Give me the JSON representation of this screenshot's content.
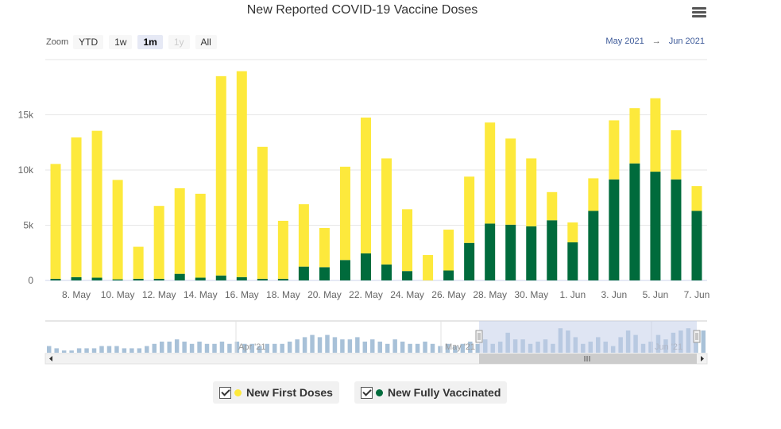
{
  "title": "New Reported COVID-19 Vaccine Doses",
  "zoom": {
    "label": "Zoom",
    "buttons": [
      "YTD",
      "1w",
      "1m",
      "1y",
      "All"
    ],
    "selected": "1m",
    "disabled": [
      "1y"
    ]
  },
  "range": {
    "from": "May 2021",
    "arrow": "→",
    "to": "Jun 2021"
  },
  "colors": {
    "first": "#fde93c",
    "full": "#006b3c",
    "navigator_bar": "#a8c1d8",
    "navigator_mask": "#c5d0ea"
  },
  "navigator": {
    "labels": [
      "Apr '21",
      "May '21",
      "Jun '21"
    ],
    "values": [
      3,
      2,
      1,
      1,
      2,
      2,
      2,
      3,
      3,
      3,
      2,
      2,
      2,
      3,
      4,
      5,
      5,
      6,
      5,
      4,
      5,
      4,
      4,
      5,
      4,
      5,
      4,
      4,
      3,
      4,
      4,
      4,
      5,
      6,
      7,
      8,
      7,
      8,
      7,
      6,
      6,
      7,
      5,
      6,
      5,
      4,
      6,
      5,
      4,
      4,
      5,
      4,
      3,
      4,
      3,
      4,
      5,
      4,
      6,
      4,
      5,
      9,
      6,
      6,
      4,
      5,
      6,
      4,
      11,
      10,
      7,
      4,
      5,
      7,
      5,
      3,
      7,
      10,
      8,
      4,
      5,
      8,
      6,
      9,
      10,
      11,
      9,
      10
    ]
  },
  "legend": [
    {
      "label": "New First Doses",
      "color": "#fde93c"
    },
    {
      "label": "New Fully Vaccinated",
      "color": "#006b3c"
    }
  ],
  "chart_data": {
    "type": "bar",
    "stacked": true,
    "title": "New Reported COVID-19 Vaccine Doses",
    "categories": [
      "7. May",
      "8. May",
      "9. May",
      "10. May",
      "11. May",
      "12. May",
      "13. May",
      "14. May",
      "15. May",
      "16. May",
      "17. May",
      "18. May",
      "19. May",
      "20. May",
      "21. May",
      "22. May",
      "23. May",
      "24. May",
      "25. May",
      "26. May",
      "27. May",
      "28. May",
      "29. May",
      "30. May",
      "31. May",
      "1. Jun",
      "2. Jun",
      "3. Jun",
      "4. Jun",
      "5. Jun",
      "6. Jun",
      "7. Jun"
    ],
    "tick_labels": [
      "8. May",
      "10. May",
      "12. May",
      "14. May",
      "16. May",
      "18. May",
      "20. May",
      "22. May",
      "24. May",
      "26. May",
      "28. May",
      "30. May",
      "1. Jun",
      "3. Jun",
      "5. Jun",
      "7. Jun"
    ],
    "series": [
      {
        "name": "New Fully Vaccinated",
        "values": [
          150,
          300,
          250,
          100,
          150,
          150,
          600,
          250,
          450,
          300,
          150,
          150,
          1250,
          1200,
          1850,
          2450,
          1450,
          850,
          0,
          900,
          3400,
          5150,
          5050,
          4900,
          5450,
          3450,
          6300,
          9150,
          10600,
          9850,
          9150,
          6300
        ]
      },
      {
        "name": "New First Doses",
        "values": [
          10400,
          12650,
          13300,
          9000,
          2900,
          6600,
          7750,
          7600,
          18050,
          18650,
          11950,
          5250,
          5650,
          3550,
          8450,
          12300,
          9600,
          5600,
          2300,
          3700,
          6000,
          9150,
          7800,
          6150,
          2550,
          1800,
          2950,
          5350,
          5000,
          6650,
          4450,
          2250
        ]
      }
    ],
    "yticks": [
      "0",
      "5k",
      "10k",
      "15k"
    ],
    "ylim": [
      0,
      20000
    ],
    "grid": true,
    "legend_position": "bottom"
  }
}
